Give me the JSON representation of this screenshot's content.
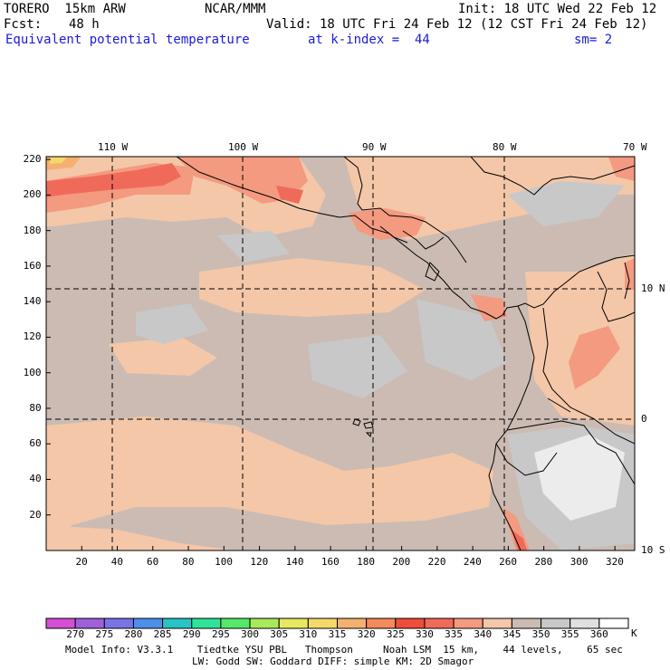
{
  "header": {
    "model": "TORERO  15km ARW",
    "org": "NCAR/MMM",
    "init": "Init: 18 UTC Wed 22 Feb 12",
    "fcst_label": "Fcst:",
    "fcst_value": "48 h",
    "valid": "Valid: 18 UTC Fri 24 Feb 12 (12 CST Fri 24 Feb 12)",
    "field": "Equivalent potential temperature",
    "level": "at k-index =  44",
    "smoothing": "sm= 2"
  },
  "map": {
    "lon_labels": [
      "110 W",
      "100 W",
      "90 W",
      "80 W",
      "70 W"
    ],
    "lat_labels": [
      "10 N",
      "0",
      "10 S"
    ],
    "x_ticks": [
      "20",
      "40",
      "60",
      "80",
      "100",
      "120",
      "140",
      "160",
      "180",
      "200",
      "220",
      "240",
      "260",
      "280",
      "300",
      "320"
    ],
    "y_ticks": [
      "220",
      "200",
      "180",
      "160",
      "140",
      "120",
      "100",
      "80",
      "60",
      "40",
      "20"
    ]
  },
  "legend": {
    "unit": "K",
    "labels": [
      "270",
      "275",
      "280",
      "285",
      "290",
      "295",
      "300",
      "305",
      "310",
      "315",
      "320",
      "325",
      "330",
      "335",
      "340",
      "345",
      "350",
      "355",
      "360"
    ],
    "colors": [
      "#d34fd3",
      "#a060d8",
      "#7a73e6",
      "#4a8fe8",
      "#26c4c4",
      "#2ee49a",
      "#54e86a",
      "#a8ea5a",
      "#e8e860",
      "#f4d86a",
      "#f5b070",
      "#f48a5a",
      "#ee4d3a",
      "#f06a5a",
      "#f39a80",
      "#f3c7a8",
      "#cbbbb3",
      "#c8c8c8",
      "#e0e0e0",
      "#ffffff"
    ]
  },
  "footer": {
    "line1": "Model Info: V3.3.1    Tiedtke YSU PBL   Thompson     Noah LSM  15 km,    44 levels,    65 sec",
    "line2": "LW: Godd SW: Goddard DIFF: simple KM: 2D Smagor"
  }
}
